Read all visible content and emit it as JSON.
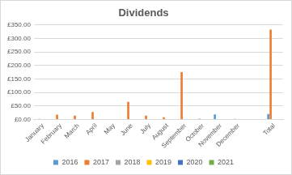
{
  "chart_data": {
    "type": "bar",
    "title": "Dividends",
    "categories": [
      "January",
      "February",
      "March",
      "April",
      "May",
      "June",
      "July",
      "August",
      "September",
      "October",
      "November",
      "December",
      null,
      "Total"
    ],
    "series": [
      {
        "name": "2016",
        "color": "#5b9bd5",
        "values": [
          0,
          0,
          0,
          0,
          0,
          0,
          0,
          0,
          0,
          0,
          19,
          0,
          null,
          20
        ]
      },
      {
        "name": "2017",
        "color": "#ed7d31",
        "values": [
          2,
          18,
          14,
          28,
          0,
          65,
          14,
          8,
          175,
          3,
          0,
          2,
          null,
          332
        ]
      },
      {
        "name": "2018",
        "color": "#a5a5a5",
        "values": [
          0,
          0,
          0,
          0,
          0,
          0,
          0,
          0,
          0,
          0,
          0,
          0,
          null,
          0
        ]
      },
      {
        "name": "2019",
        "color": "#ffc000",
        "values": [
          0,
          0,
          0,
          0,
          0,
          0,
          0,
          0,
          0,
          0,
          0,
          0,
          null,
          0
        ]
      },
      {
        "name": "2020",
        "color": "#4472c4",
        "values": [
          0,
          0,
          0,
          0,
          0,
          0,
          0,
          0,
          0,
          0,
          0,
          0,
          null,
          0
        ]
      },
      {
        "name": "2021",
        "color": "#70ad47",
        "values": [
          0,
          0,
          0,
          0,
          0,
          0,
          0,
          0,
          0,
          0,
          0,
          0,
          null,
          0
        ]
      }
    ],
    "ylim": [
      0,
      350
    ],
    "yticks": [
      {
        "value": 0,
        "label": "£0.00"
      },
      {
        "value": 50,
        "label": "£50.00"
      },
      {
        "value": 100,
        "label": "£100.00"
      },
      {
        "value": 150,
        "label": "£150.00"
      },
      {
        "value": 200,
        "label": "£200.00"
      },
      {
        "value": 250,
        "label": "£250.00"
      },
      {
        "value": 300,
        "label": "£300.00"
      },
      {
        "value": 350,
        "label": "£350.00"
      }
    ],
    "grid": true,
    "legend": "bottom"
  }
}
